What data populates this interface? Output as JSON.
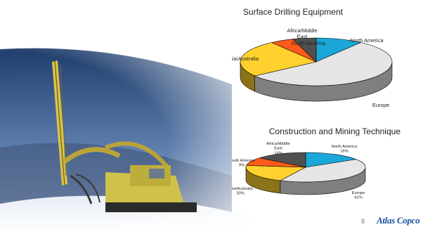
{
  "page_number": "8",
  "logo_text": "Atlas Copco",
  "colors": {
    "north_america": "#1ba7d8",
    "europe": "#e6e6e6",
    "asia_australia": "#ffd02e",
    "south_america": "#ff5a1a",
    "africa_middle_east": "#505050",
    "brand_blue": "#1a4fa0"
  },
  "chart_data": [
    {
      "type": "pie",
      "title": "Surface Drilling Equipment",
      "labels_show_percent": false,
      "slices": [
        {
          "label": "North America",
          "value": 10,
          "color": "#1ba7d8"
        },
        {
          "label": "Europe",
          "value": 55,
          "color": "#e6e6e6"
        },
        {
          "label": "Asia/Australia",
          "value": 25,
          "color": "#ffd02e"
        },
        {
          "label": "South America",
          "value": 5,
          "color": "#ff5a1a"
        },
        {
          "label": "Africa/Middle East",
          "value": 5,
          "color": "#505050"
        }
      ]
    },
    {
      "type": "pie",
      "title": "Construction and Mining Technique",
      "labels_show_percent": true,
      "slices": [
        {
          "label": "North America",
          "value": 16,
          "pct": "16%",
          "color": "#1ba7d8"
        },
        {
          "label": "Europe",
          "value": 41,
          "pct": "41%",
          "color": "#e6e6e6"
        },
        {
          "label": "Asia/Australia",
          "value": 20,
          "pct": "20%",
          "color": "#ffd02e"
        },
        {
          "label": "South America",
          "value": 9,
          "pct": "9%",
          "color": "#ff5a1a"
        },
        {
          "label": "Africa/Middle East",
          "value": 14,
          "pct": "14%",
          "color": "#505050"
        }
      ]
    }
  ]
}
